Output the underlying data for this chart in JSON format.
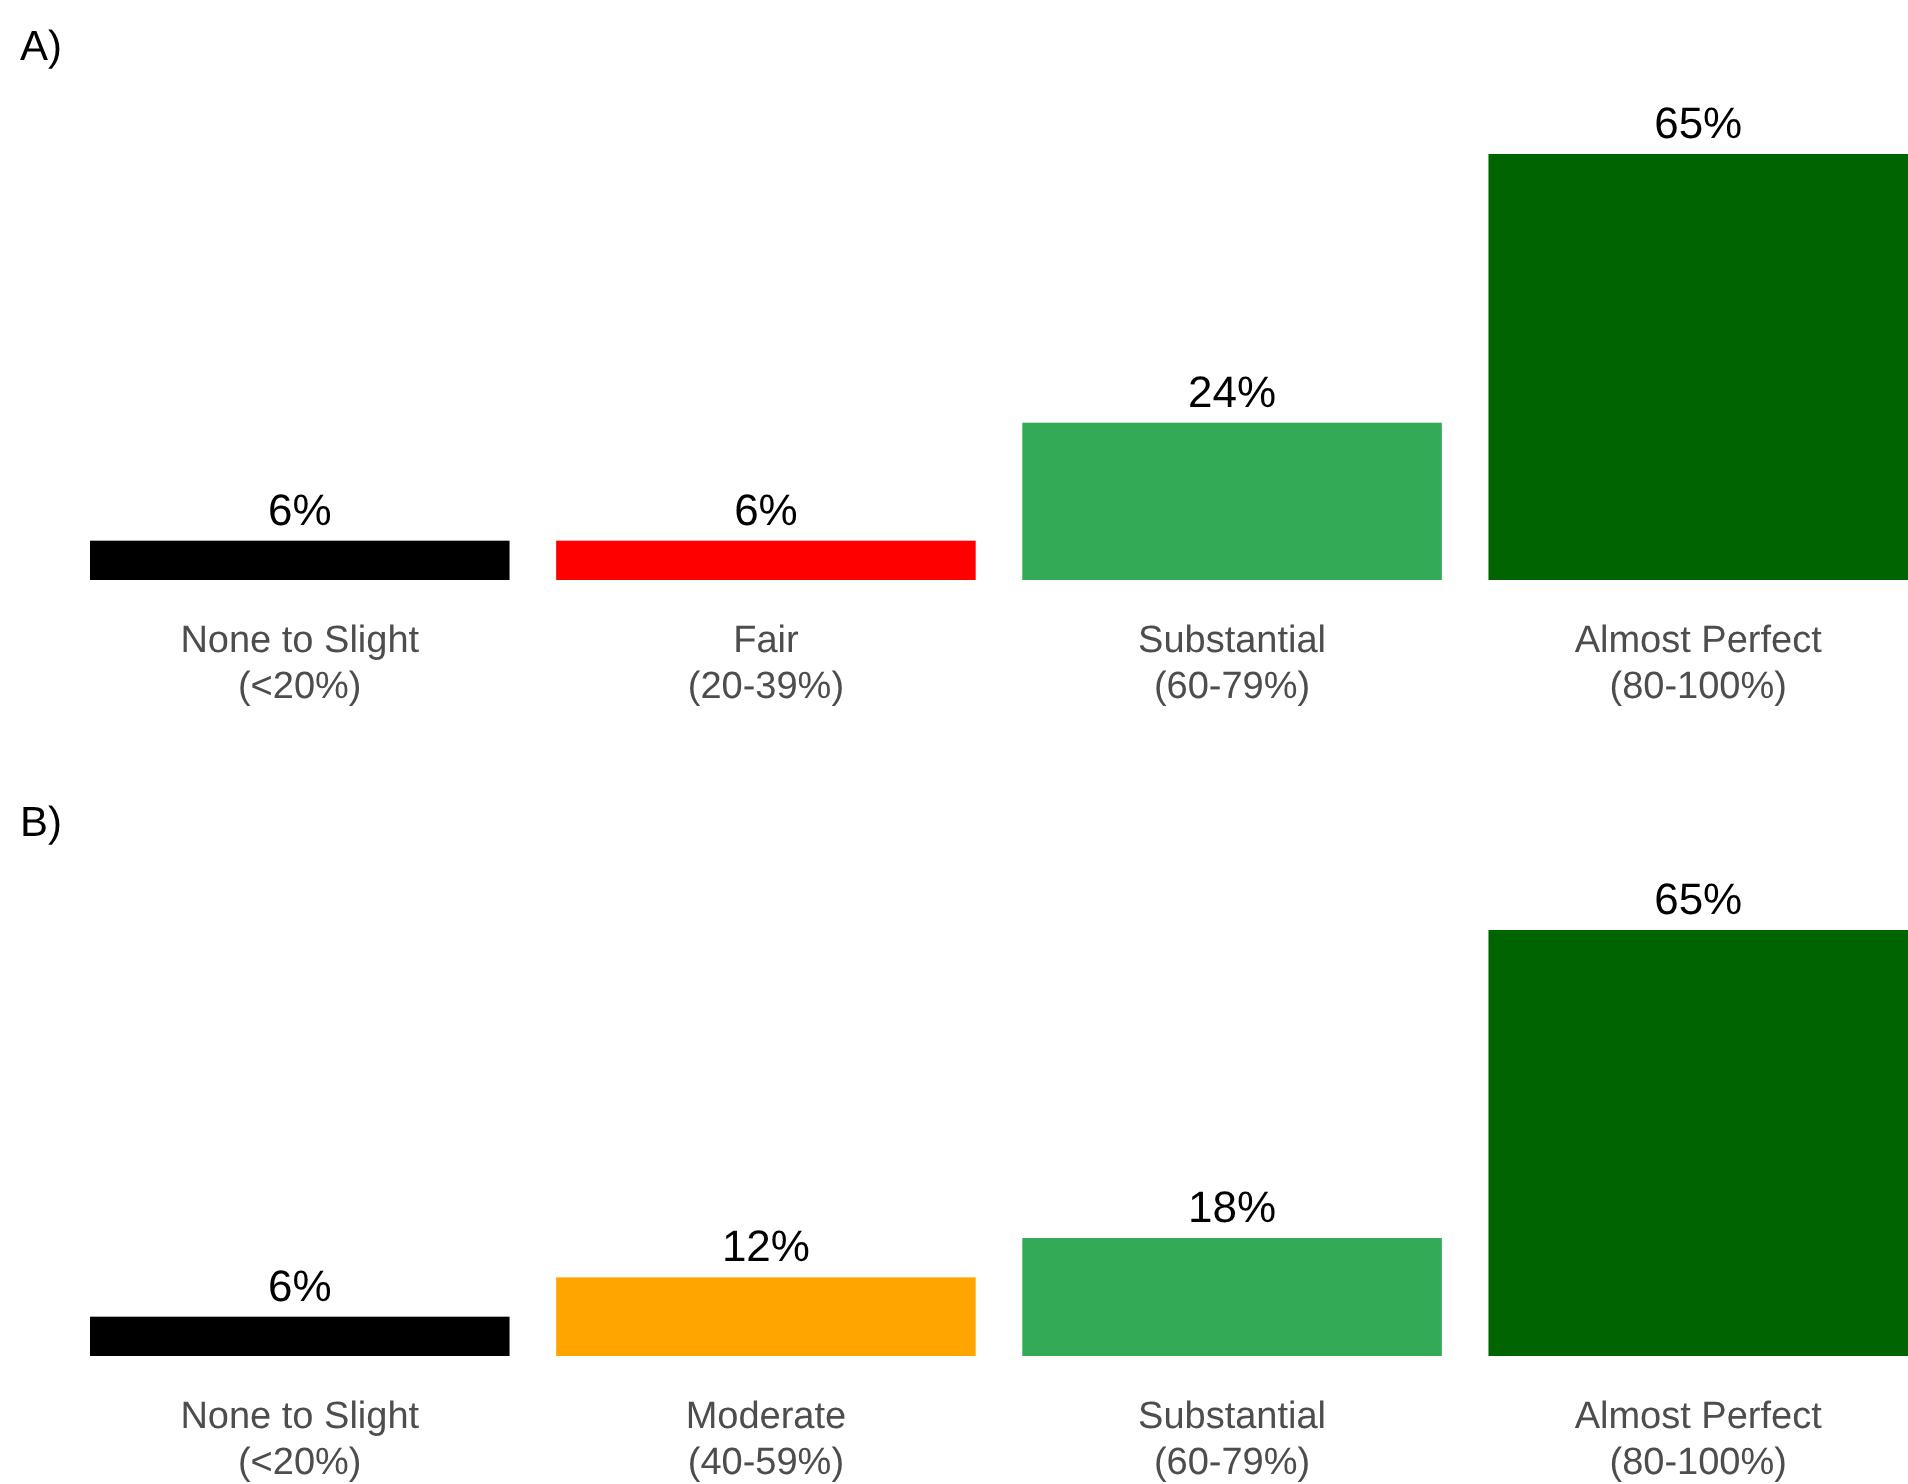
{
  "chart_data": [
    {
      "type": "bar",
      "title": "A)",
      "categories": [
        "None to Slight\n(<20%)",
        "Fair\n(20-39%)",
        "Substantial\n(60-79%)",
        "Almost Perfect\n(80-100%)"
      ],
      "values": [
        6,
        6,
        24,
        65
      ],
      "colors": [
        "#000000",
        "#ff0000",
        "#33aa55",
        "#006400"
      ],
      "value_labels": [
        "6%",
        "6%",
        "24%",
        "65%"
      ]
    },
    {
      "type": "bar",
      "title": "B)",
      "categories": [
        "None to Slight\n(<20%)",
        "Moderate\n(40-59%)",
        "Substantial\n(60-79%)",
        "Almost Perfect\n(80-100%)"
      ],
      "values": [
        6,
        12,
        18,
        65
      ],
      "colors": [
        "#000000",
        "#ffa500",
        "#33aa55",
        "#006400"
      ],
      "value_labels": [
        "6%",
        "12%",
        "18%",
        "65%"
      ]
    }
  ]
}
